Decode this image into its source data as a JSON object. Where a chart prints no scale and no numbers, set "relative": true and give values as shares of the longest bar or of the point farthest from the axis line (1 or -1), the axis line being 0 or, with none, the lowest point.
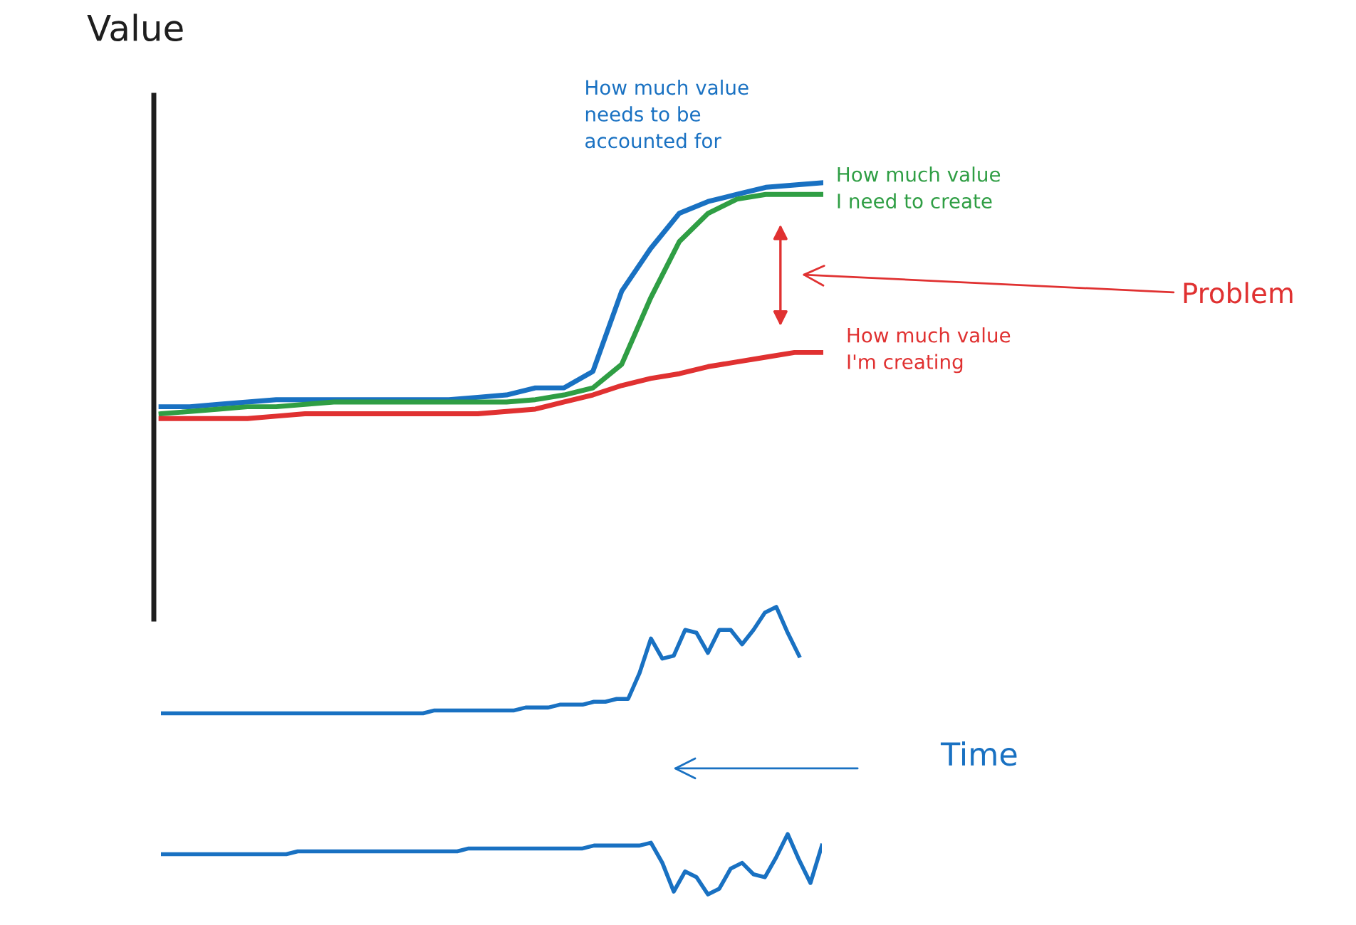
{
  "chart_data": [
    {
      "type": "line",
      "relative": true,
      "ylabel": "Value",
      "annotations": [
        "Problem"
      ],
      "categories": [
        null,
        null,
        null,
        null,
        null,
        null,
        null,
        null,
        null,
        null,
        null,
        null,
        null,
        null,
        null,
        null,
        null,
        null,
        null,
        null,
        null,
        null,
        null,
        null
      ],
      "series": [
        {
          "name": "How much value\nneeds to be\naccounted for",
          "color": "#1971c2",
          "values": [
            0.05,
            0.05,
            0.06,
            0.07,
            0.08,
            0.08,
            0.08,
            0.08,
            0.08,
            0.08,
            0.08,
            0.09,
            0.1,
            0.13,
            0.13,
            0.2,
            0.54,
            0.72,
            0.87,
            0.92,
            0.95,
            0.98,
            0.99,
            1
          ]
        },
        {
          "name": "How much value\nI need to create",
          "color": "#2f9e44",
          "values": [
            0.02,
            0.03,
            0.04,
            0.05,
            0.05,
            0.06,
            0.07,
            0.07,
            0.07,
            0.07,
            0.07,
            0.07,
            0.07,
            0.08,
            0.1,
            0.13,
            0.23,
            0.51,
            0.75,
            0.87,
            0.93,
            0.95,
            0.95,
            0.95
          ]
        },
        {
          "name": "How much value\nI'm creating",
          "color": "#e03131",
          "values": [
            0,
            0,
            0,
            0,
            0.01,
            0.02,
            0.02,
            0.02,
            0.02,
            0.02,
            0.02,
            0.02,
            0.03,
            0.04,
            0.07,
            0.1,
            0.14,
            0.17,
            0.19,
            0.22,
            0.24,
            0.26,
            0.28,
            0.28
          ]
        }
      ]
    },
    {
      "type": "line",
      "relative": true,
      "annotations": [
        "Time"
      ],
      "categories": [
        null,
        null,
        null,
        null,
        null,
        null,
        null,
        null,
        null,
        null,
        null,
        null,
        null,
        null,
        null,
        null,
        null,
        null,
        null,
        null,
        null,
        null,
        null,
        null,
        null,
        null,
        null,
        null,
        null,
        null,
        null,
        null,
        null,
        null,
        null,
        null,
        null,
        null,
        null,
        null,
        null,
        null,
        null,
        null,
        null,
        null,
        null,
        null,
        null,
        null,
        null,
        null,
        null,
        null,
        null,
        null,
        null,
        null,
        null
      ],
      "series": [
        {
          "color": "#1971c2",
          "values": [
            0.63,
            0.63,
            0.63,
            0.63,
            0.63,
            0.63,
            0.63,
            0.63,
            0.63,
            0.63,
            0.63,
            0.63,
            0.63,
            0.63,
            0.63,
            0.63,
            0.63,
            0.63,
            0.63,
            0.63,
            0.63,
            0.63,
            0.63,
            0.63,
            0.64,
            0.64,
            0.64,
            0.64,
            0.64,
            0.64,
            0.64,
            0.64,
            0.65,
            0.65,
            0.65,
            0.66,
            0.66,
            0.66,
            0.67,
            0.67,
            0.68,
            0.68,
            0.77,
            0.89,
            0.82,
            0.83,
            0.92,
            0.91,
            0.84,
            0.92,
            0.92,
            0.87,
            0.92,
            0.98,
            1,
            0.91,
            0.83,
            null,
            null
          ]
        },
        {
          "color": "#1971c2",
          "values": [
            0.14,
            0.14,
            0.14,
            0.14,
            0.14,
            0.14,
            0.14,
            0.14,
            0.14,
            0.14,
            0.14,
            0.14,
            0.15,
            0.15,
            0.15,
            0.15,
            0.15,
            0.15,
            0.15,
            0.15,
            0.15,
            0.15,
            0.15,
            0.15,
            0.15,
            0.15,
            0.15,
            0.16,
            0.16,
            0.16,
            0.16,
            0.16,
            0.16,
            0.16,
            0.16,
            0.16,
            0.16,
            0.16,
            0.17,
            0.17,
            0.17,
            0.17,
            0.17,
            0.18,
            0.11,
            0.01,
            0.08,
            0.06,
            0,
            0.02,
            0.09,
            0.11,
            0.07,
            0.06,
            0.13,
            0.21,
            0.12,
            0.04,
            0.17
          ]
        }
      ]
    }
  ]
}
